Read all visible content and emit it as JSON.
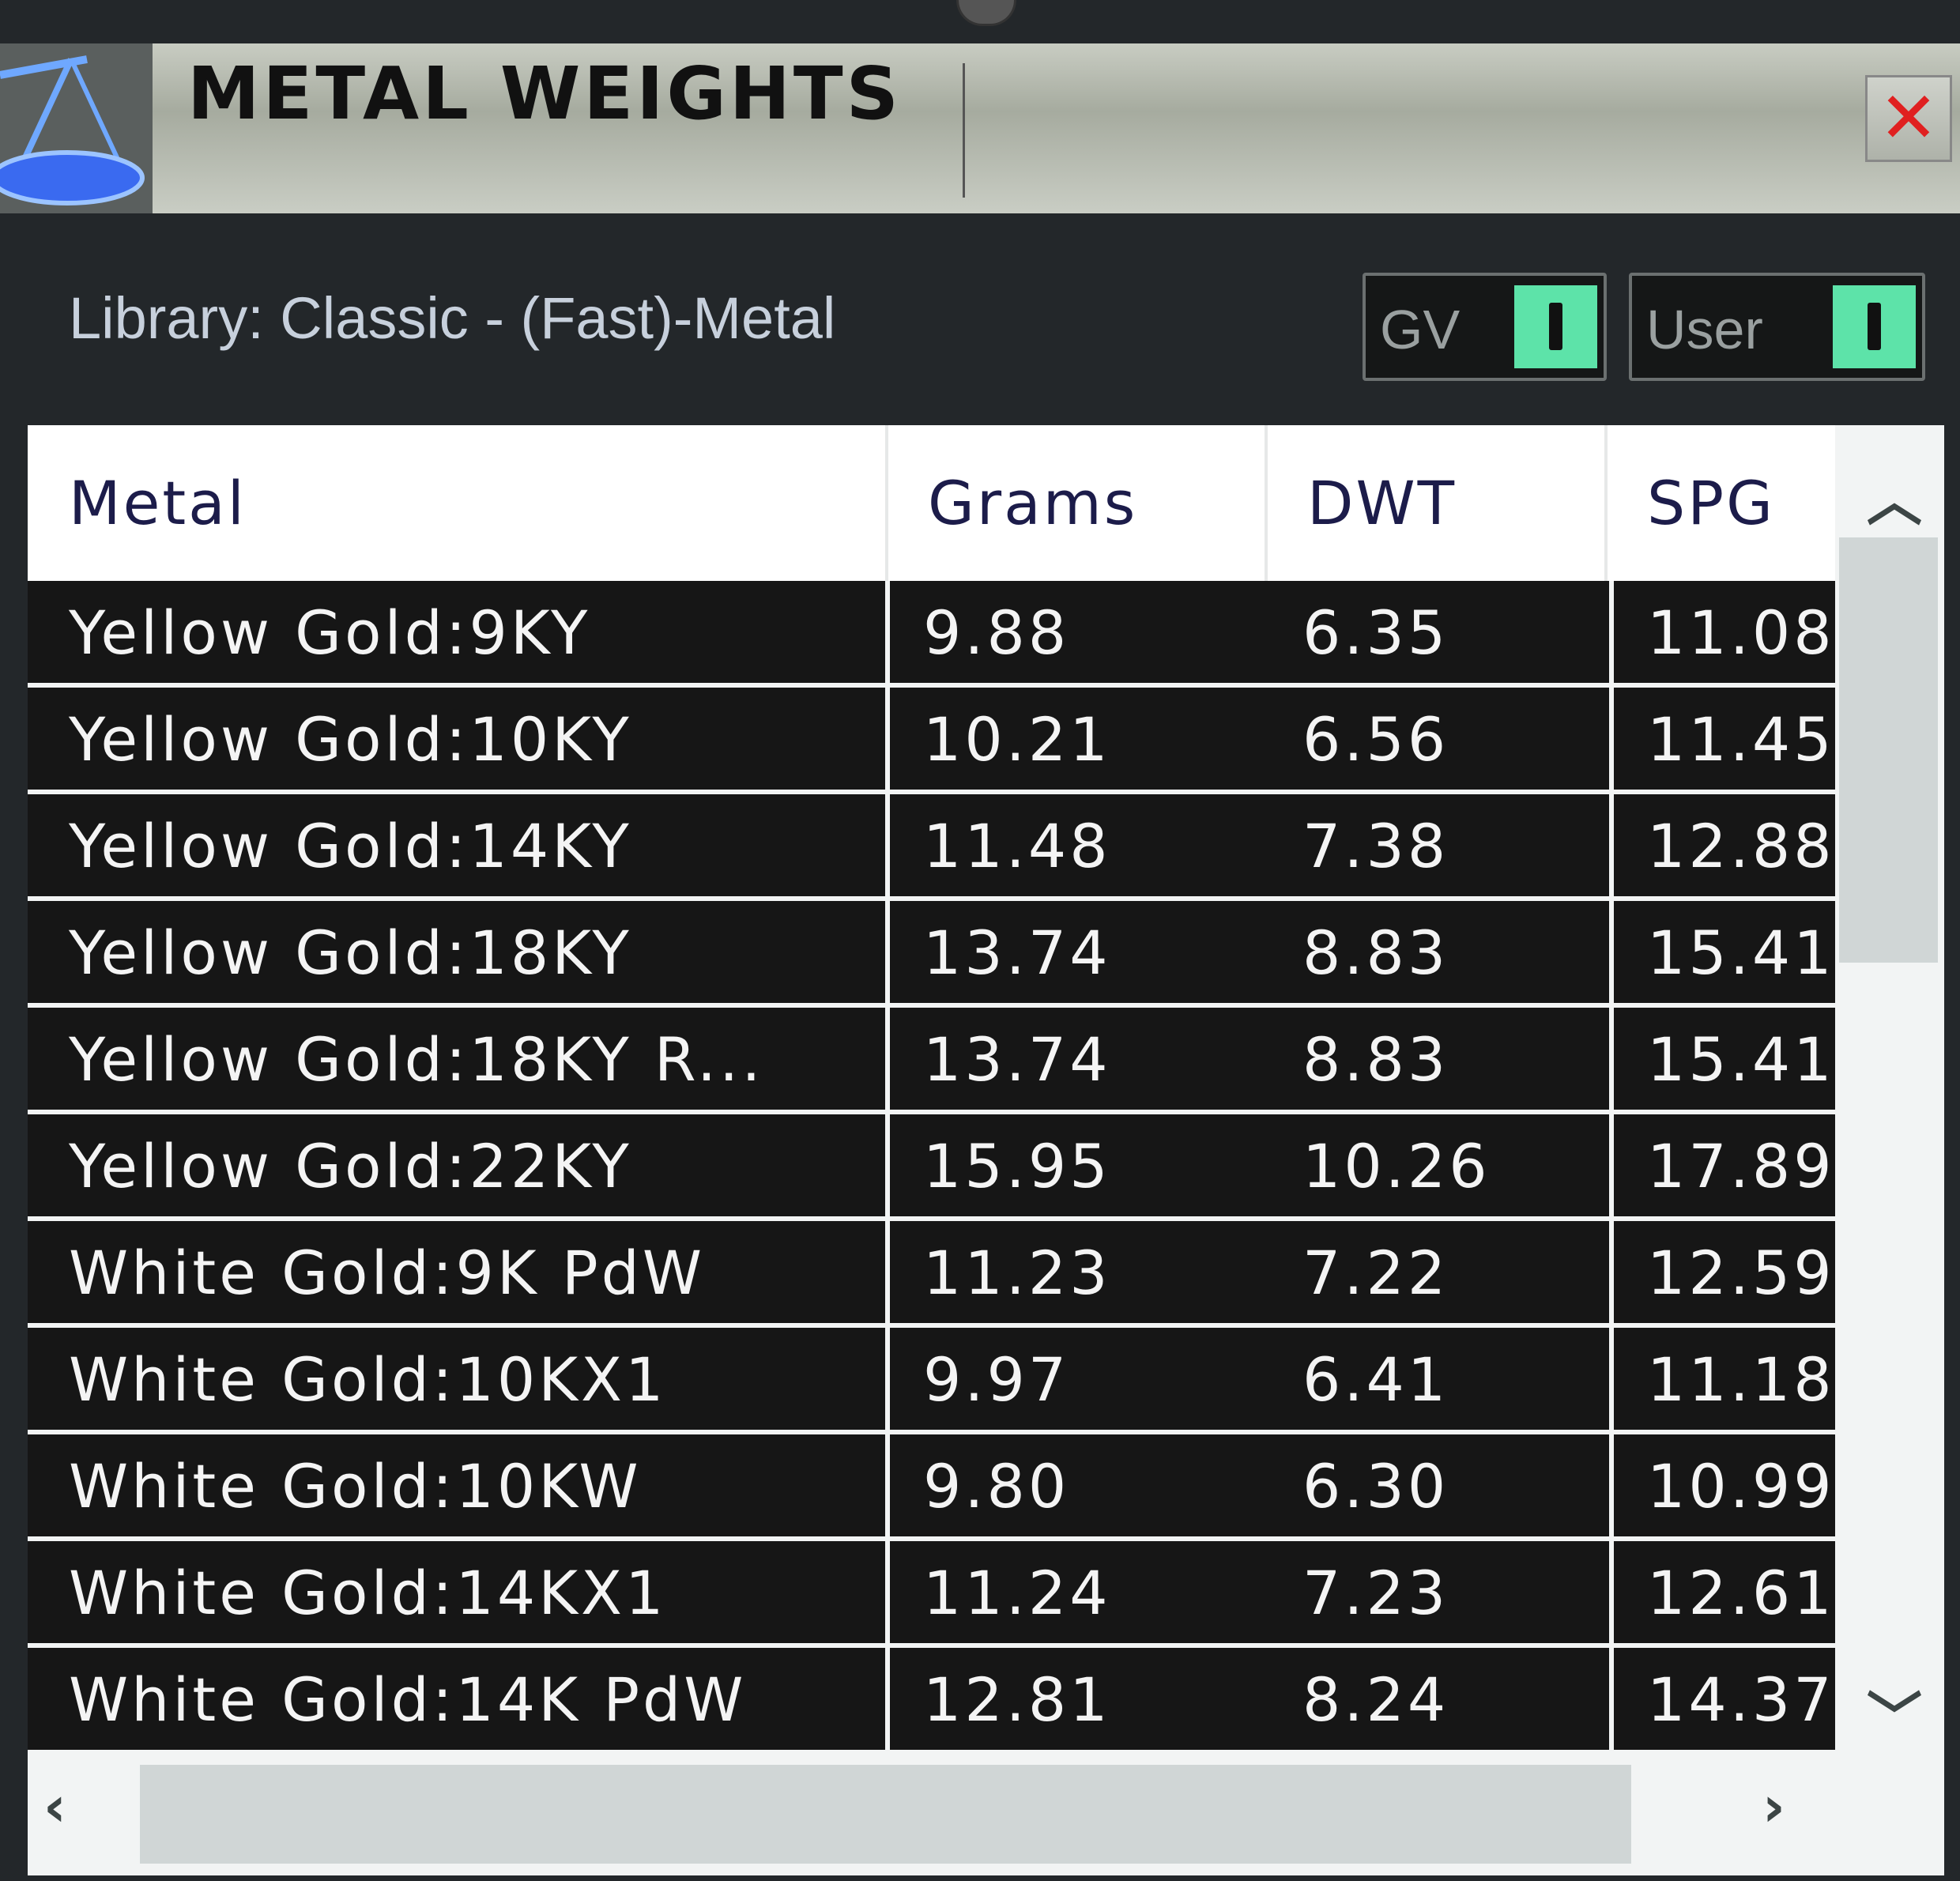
{
  "window": {
    "title": "METAL WEIGHTS",
    "icon": "scale-icon",
    "close_icon": "close-icon"
  },
  "library": {
    "label": "Library: Classic - (Fast)-Metal"
  },
  "toggles": [
    {
      "label": "GV",
      "state": "on",
      "color": "#5de3a9"
    },
    {
      "label": "User",
      "state": "on",
      "color": "#5de3a9"
    }
  ],
  "table": {
    "columns": [
      "Metal",
      "Grams",
      "DWT",
      "SPG"
    ],
    "rows": [
      [
        "Yellow Gold:9KY",
        "9.88",
        "6.35",
        "11.08"
      ],
      [
        "Yellow Gold:10KY",
        "10.21",
        "6.56",
        "11.45"
      ],
      [
        "Yellow Gold:14KY",
        "11.48",
        "7.38",
        "12.88"
      ],
      [
        "Yellow Gold:18KY",
        "13.74",
        "8.83",
        "15.41"
      ],
      [
        "Yellow Gold:18KY R...",
        "13.74",
        "8.83",
        "15.41"
      ],
      [
        "Yellow Gold:22KY",
        "15.95",
        "10.26",
        "17.89"
      ],
      [
        "White Gold:9K PdW",
        "11.23",
        "7.22",
        "12.59"
      ],
      [
        "White Gold:10KX1",
        "9.97",
        "6.41",
        "11.18"
      ],
      [
        "White Gold:10KW",
        "9.80",
        "6.30",
        "10.99"
      ],
      [
        "White Gold:14KX1",
        "11.24",
        "7.23",
        "12.61"
      ],
      [
        "White Gold:14K PdW",
        "12.81",
        "8.24",
        "14.37"
      ]
    ]
  },
  "scrollbars": {
    "up": "chevron-up-icon",
    "down": "chevron-down-icon",
    "left": "chevron-left-icon",
    "right": "chevron-right-icon"
  }
}
